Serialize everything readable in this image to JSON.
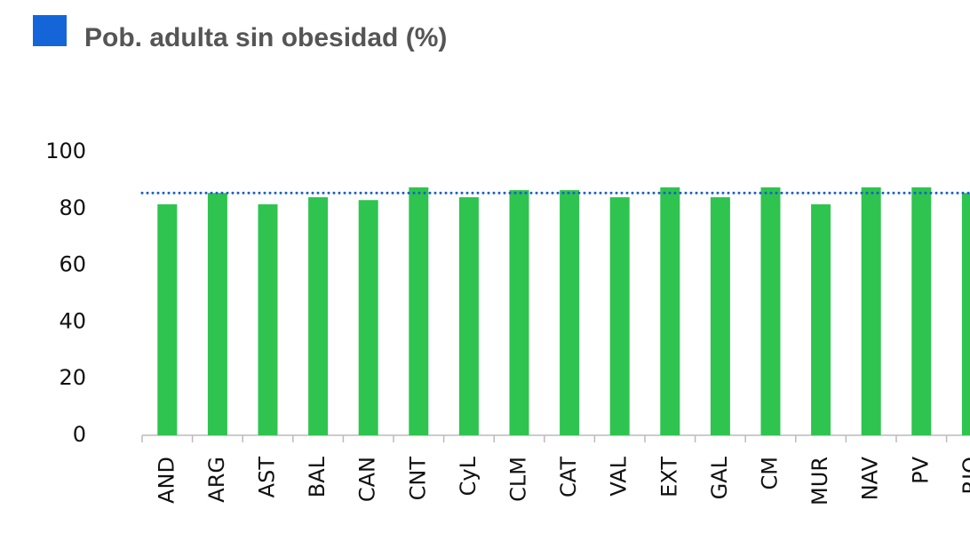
{
  "chart_data": {
    "type": "bar",
    "title": "Pob. adulta sin obesidad (%)",
    "categories": [
      "AND",
      "ARG",
      "AST",
      "BAL",
      "CAN",
      "CNT",
      "CyL",
      "CLM",
      "CAT",
      "VAL",
      "EXT",
      "GAL",
      "CM",
      "MUR",
      "NAV",
      "PV",
      "RIO"
    ],
    "values": [
      81.5,
      85.5,
      81.5,
      84,
      83,
      87.5,
      84,
      86.5,
      86.5,
      84,
      87.5,
      84,
      87.5,
      81.5,
      87.5,
      87.5,
      85.5
    ],
    "color": "#2ec44f",
    "reference_line": {
      "value": 85.5,
      "color": "#1a5fc8"
    },
    "ylim": [
      0,
      100
    ],
    "yticks": [
      0,
      20,
      40,
      60,
      80,
      100
    ],
    "grid": false
  }
}
